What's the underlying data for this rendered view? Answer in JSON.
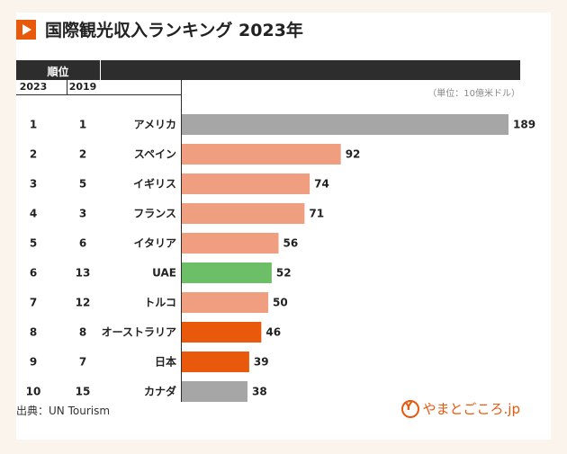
{
  "title": "国際観光収入ランキング 2023年",
  "header": {
    "rank_label": "順位",
    "year_2023": "2023",
    "year_2019": "2019"
  },
  "unit_label": "（単位：10億米ドル）",
  "footer": {
    "source": "出典：UN Tourism",
    "logo_text": "やまとごころ.jp"
  },
  "colors": {
    "gray": "#a6a6a6",
    "salmon": "#ef9f80",
    "green": "#6cbf66",
    "orange": "#e8590c",
    "dark": "#2d2d2d",
    "accent": "#e8590c"
  },
  "chart_data": {
    "type": "bar",
    "orientation": "horizontal",
    "title": "国際観光収入ランキング 2023年",
    "unit": "10億米ドル",
    "rows": [
      {
        "rank_2023": "1",
        "rank_2019": "1",
        "country": "アメリカ",
        "value": 189,
        "color": "gray"
      },
      {
        "rank_2023": "2",
        "rank_2019": "2",
        "country": "スペイン",
        "value": 92,
        "color": "salmon"
      },
      {
        "rank_2023": "3",
        "rank_2019": "5",
        "country": "イギリス",
        "value": 74,
        "color": "salmon"
      },
      {
        "rank_2023": "4",
        "rank_2019": "3",
        "country": "フランス",
        "value": 71,
        "color": "salmon"
      },
      {
        "rank_2023": "5",
        "rank_2019": "6",
        "country": "イタリア",
        "value": 56,
        "color": "salmon"
      },
      {
        "rank_2023": "6",
        "rank_2019": "13",
        "country": "UAE",
        "value": 52,
        "color": "green"
      },
      {
        "rank_2023": "7",
        "rank_2019": "12",
        "country": "トルコ",
        "value": 50,
        "color": "salmon"
      },
      {
        "rank_2023": "8",
        "rank_2019": "8",
        "country": "オーストラリア",
        "value": 46,
        "color": "orange"
      },
      {
        "rank_2023": "9",
        "rank_2019": "7",
        "country": "日本",
        "value": 39,
        "color": "orange"
      },
      {
        "rank_2023": "10",
        "rank_2019": "15",
        "country": "カナダ",
        "value": 38,
        "color": "gray"
      }
    ],
    "xlim": [
      0,
      189
    ]
  }
}
